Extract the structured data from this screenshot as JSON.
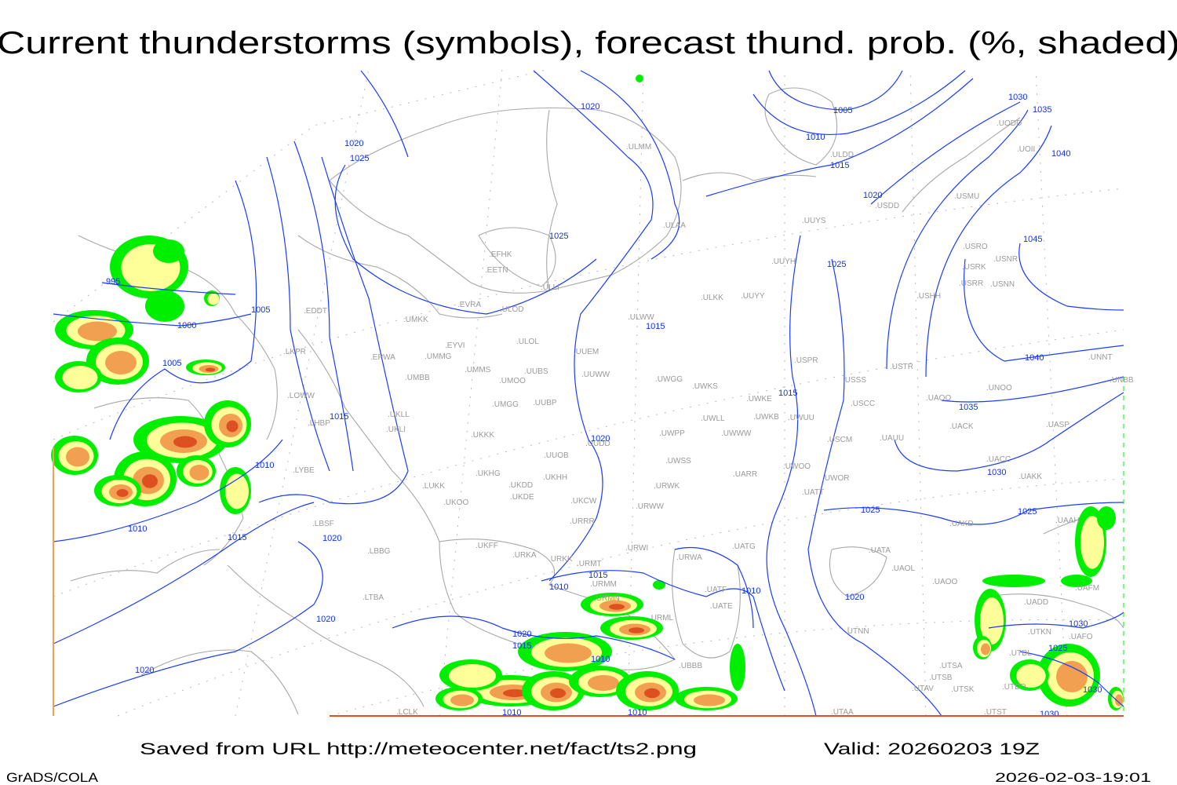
{
  "title": "Current thunderstorms (symbols), forecast thund. prob. (%, shaded)",
  "footer": {
    "saved_from": "Saved from URL http://meteocenter.net/fact/ts2.png",
    "valid": "Valid: 20260203 19Z",
    "software": "GrADS/COLA",
    "timestamp": "2026-02-03-19:01"
  },
  "colors": {
    "isobar": "#1a3cff",
    "coastline": "#a8a8a8",
    "station_label": "#9a9a9a",
    "prob_low": "#00ee00",
    "prob_mid": "#ffff99",
    "prob_high": "#f0a050",
    "prob_max": "#dd5020"
  },
  "stations": [
    "ULMM",
    "ULDD",
    "USDD",
    "USMU",
    "UODD",
    "UOII",
    "ULAA",
    "UUYS",
    "USRO",
    "USNR",
    "USRK",
    "USRR",
    "USNN",
    "USHH",
    "EFHK",
    "EETN",
    "ULLI",
    "EVRA",
    "ULOD",
    "UMKK",
    "EDDT",
    "UUYY",
    "ULKK",
    "UUYH",
    "ULWW",
    "UUEM",
    "ULOL",
    "EYVI",
    "LKPR",
    "EPWA",
    "UMMG",
    "USPR",
    "USTR",
    "UNNT",
    "UUWW",
    "UMMS",
    "UUBS",
    "UMOO",
    "UMBB",
    "UWGG",
    "UWKS",
    "UNBB",
    "UNOO",
    "USSS",
    "LOWW",
    "UWKE",
    "UAOO",
    "UWLL",
    "UWKB",
    "UWUU",
    "USCC",
    "UMGG",
    "UUBP",
    "UKLL",
    "UKLI",
    "LHBP",
    "UKKK",
    "UACK",
    "UASP",
    "UWPP",
    "UWWW",
    "USCM",
    "UAUU",
    "UUDD",
    "UUOB",
    "UWSS",
    "UACC",
    "UAKK",
    "UWOO",
    "UWOR",
    "UARR",
    "LYBE",
    "UKHG",
    "UKDD",
    "UKHH",
    "LUKK",
    "UKDE",
    "UKOO",
    "UKCW",
    "URWW",
    "URWK",
    "UATT",
    "UAKD",
    "URRR",
    "UAAH",
    "LBSF",
    "LBBG",
    "UKFF",
    "URKA",
    "URKK",
    "URWI",
    "URWA",
    "UATG",
    "UATA",
    "UAOL",
    "URMT",
    "URMM",
    "UAOO",
    "UAFM",
    "URMN",
    "UATE",
    "UATF",
    "UADD",
    "LTBA",
    "URML",
    "UTNN",
    "UTKN",
    "UAFO",
    "UTDL",
    "UBBB",
    "UTSA",
    "UTSB",
    "UTDD",
    "UTAV",
    "UTSK",
    "UTAA",
    "UTST",
    "LCLK"
  ],
  "isobar_labels": [
    "1020",
    "1005",
    "1010",
    "1015",
    "1030",
    "1035",
    "1040",
    "1020",
    "1025",
    "1020",
    "1025",
    "1045",
    "995",
    "1025",
    "1005",
    "1015",
    "1000",
    "1040",
    "1005",
    "1015",
    "1035",
    "1015",
    "1020",
    "1010",
    "1030",
    "1025",
    "1025",
    "1010",
    "1015",
    "1020",
    "1010",
    "1015",
    "1010",
    "1020",
    "1020",
    "1020",
    "1015",
    "1030",
    "1010",
    "1025",
    "1020",
    "1030",
    "1010",
    "1010",
    "1030"
  ]
}
